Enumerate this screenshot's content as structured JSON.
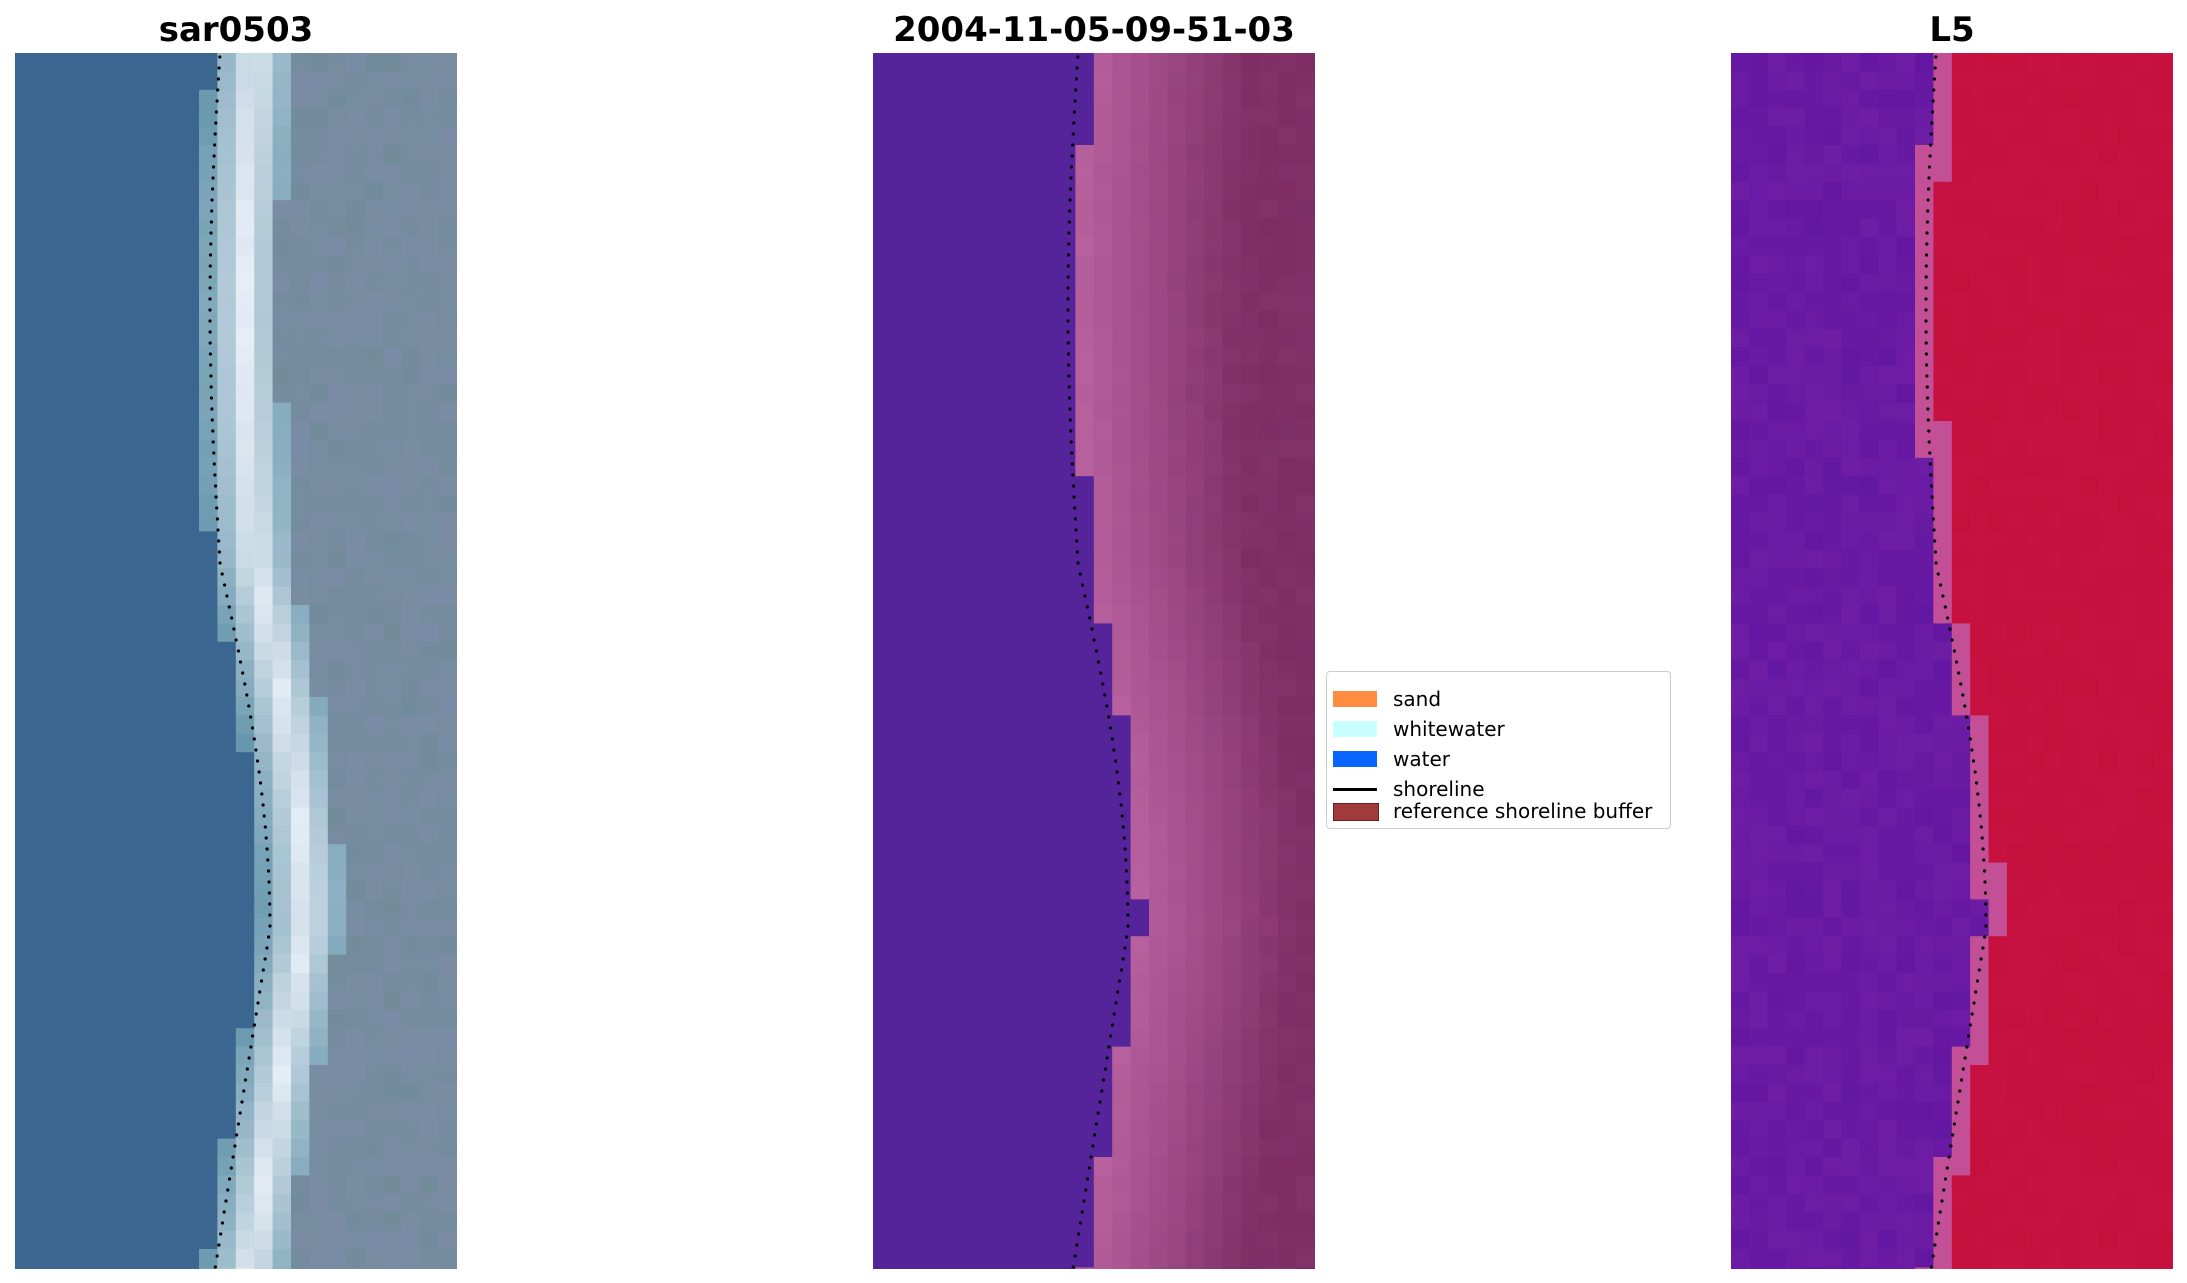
{
  "panels": [
    {
      "title": "sar0503",
      "kind": "rgb"
    },
    {
      "title": "2004-11-05-09-51-03",
      "kind": "classified"
    },
    {
      "title": "L5",
      "kind": "index"
    }
  ],
  "legend": {
    "items": [
      {
        "label": "sand",
        "color": "#ff8c40",
        "type": "patch"
      },
      {
        "label": "whitewater",
        "color": "#c8ffff",
        "type": "patch"
      },
      {
        "label": "water",
        "color": "#0a64ff",
        "type": "patch"
      },
      {
        "label": "shoreline",
        "color": "#000000",
        "type": "line"
      },
      {
        "label": "reference shoreline buffer",
        "color": "#a13a3a",
        "type": "patch"
      }
    ]
  },
  "colors": {
    "rgb_water": "#3a6690",
    "rgb_surf": "#e6eef5",
    "rgb_land": "#7a8ca5",
    "class_water": "#55249a",
    "class_land": "#a14a8a",
    "index_water": "#6f1da5",
    "index_land": "#c6103c"
  }
}
